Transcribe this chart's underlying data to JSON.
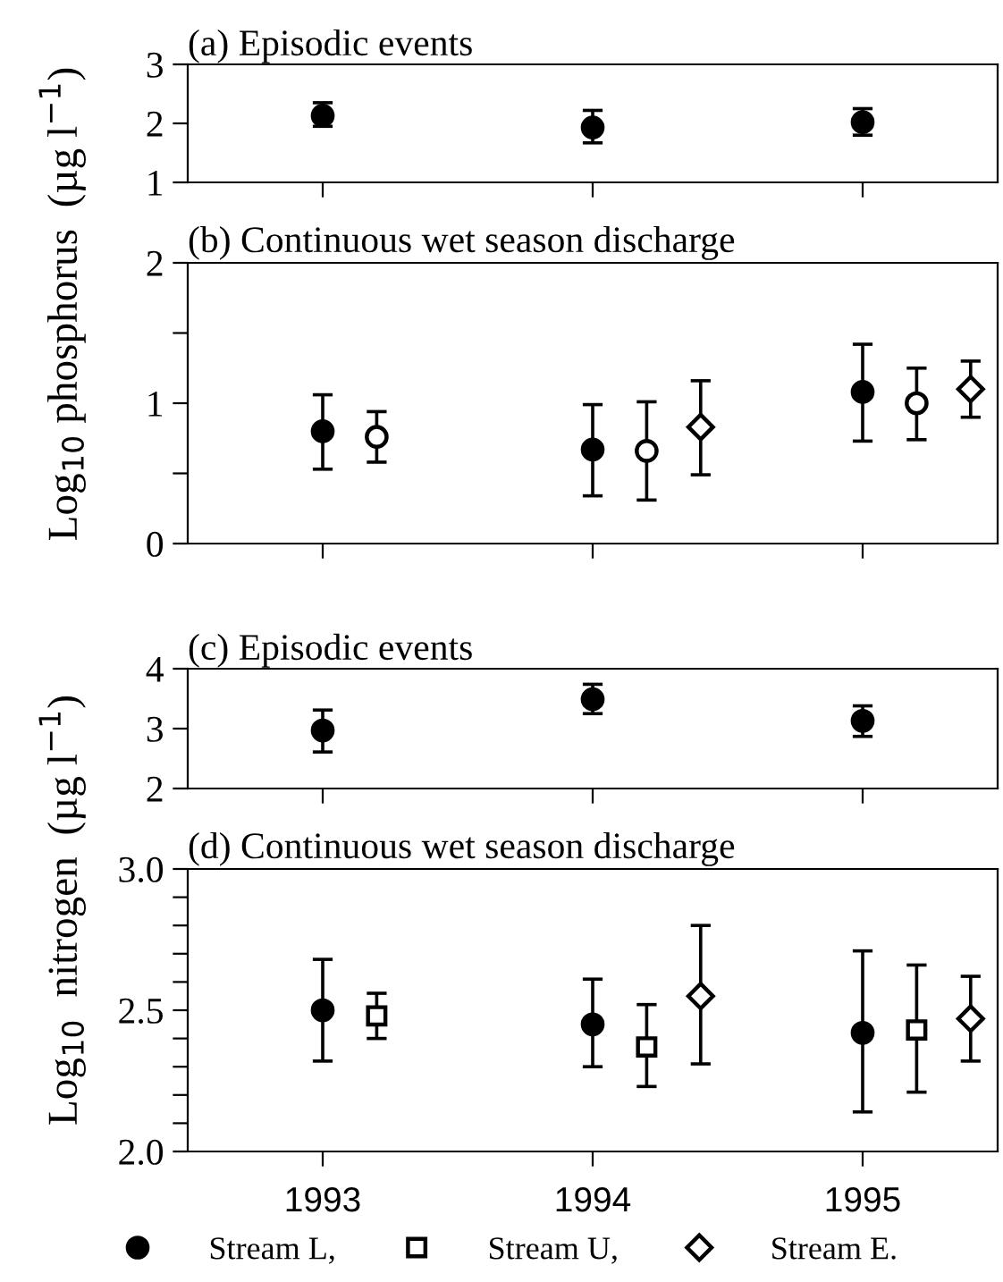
{
  "chart_data": [
    {
      "type": "scatter",
      "title": "(a) Episodic events",
      "xlim": [
        1992.5,
        1995.5
      ],
      "xticks": [
        1993,
        1994,
        1995
      ],
      "ylim": [
        1,
        3
      ],
      "yticks": [
        1,
        2,
        3
      ],
      "tick_labels": "y",
      "grid": false,
      "series": [
        {
          "color": "#000000",
          "marker": "circle",
          "x": [
            1993,
            1994,
            1995
          ],
          "values": [
            2.13,
            1.93,
            2.02
          ],
          "errors": [
            [
              1.95,
              2.35
            ],
            [
              1.67,
              2.22
            ],
            [
              1.8,
              2.25
            ]
          ]
        }
      ]
    },
    {
      "type": "scatter",
      "title": "(b) Continuous wet season discharge",
      "ylabel": "Log$_{10}$ phosphorus  (µg l$^{−1}$)",
      "xlim": [
        1992.5,
        1995.5
      ],
      "xticks": [
        1993,
        1994,
        1995
      ],
      "ylim": [
        0,
        2
      ],
      "yticks": [
        0,
        {
          "value": 0.5,
          "label": null
        },
        1,
        {
          "value": 1.5,
          "label": null
        },
        2
      ],
      "tick_labels": "y",
      "grid": false,
      "series": [
        {
          "color": "#000000",
          "marker": "circle",
          "x": [
            1993,
            1994,
            1995
          ],
          "values": [
            0.8,
            0.67,
            1.08
          ],
          "errors": [
            [
              0.53,
              1.06
            ],
            [
              0.34,
              0.99
            ],
            [
              0.73,
              1.42
            ]
          ]
        },
        {
          "color": "#ffffff",
          "marker": "circle",
          "x": [
            1993.2,
            1994.2,
            1995.2
          ],
          "values": [
            0.76,
            0.66,
            1.0
          ],
          "errors": [
            [
              0.58,
              0.94
            ],
            [
              0.31,
              1.01
            ],
            [
              0.74,
              1.25
            ]
          ]
        },
        {
          "color": "#ffffff",
          "marker": "diamond",
          "x": [
            1994.4,
            1995.4
          ],
          "values": [
            0.83,
            1.1
          ],
          "errors": [
            [
              0.49,
              1.16
            ],
            [
              0.9,
              1.3
            ]
          ]
        }
      ]
    },
    {
      "type": "scatter",
      "title": "(c) Episodic events",
      "xlim": [
        1992.5,
        1995.5
      ],
      "xticks": [
        1993,
        1994,
        1995
      ],
      "ylim": [
        2,
        4
      ],
      "yticks": [
        2,
        3,
        4
      ],
      "tick_labels": "y",
      "grid": false,
      "series": [
        {
          "color": "#000000",
          "marker": "circle",
          "x": [
            1993,
            1994,
            1995
          ],
          "values": [
            2.97,
            3.49,
            3.13
          ],
          "errors": [
            [
              2.61,
              3.31
            ],
            [
              3.25,
              3.74
            ],
            [
              2.87,
              3.38
            ]
          ]
        }
      ]
    },
    {
      "type": "scatter",
      "title": "(d) Continuous wet season discharge",
      "ylabel": "Log$_{10}$  nitrogen  (µg l$^{−1}$)",
      "xlim": [
        1992.5,
        1995.5
      ],
      "xticks": [
        1993,
        1994,
        1995
      ],
      "ylim": [
        2,
        3
      ],
      "yticks": [
        {
          "value": 2,
          "label": "2.0"
        },
        {
          "value": 2.1,
          "label": null
        },
        {
          "value": 2.2,
          "label": null
        },
        {
          "value": 2.3,
          "label": null
        },
        {
          "value": 2.4,
          "label": null
        },
        {
          "value": 2.5,
          "label": "2.5"
        },
        {
          "value": 2.6,
          "label": null
        },
        {
          "value": 2.7,
          "label": null
        },
        {
          "value": 2.8,
          "label": null
        },
        {
          "value": 2.9,
          "label": null
        },
        {
          "value": 3,
          "label": "3.0"
        }
      ],
      "grid": false,
      "legend": "bottom",
      "series": [
        {
          "name": "Stream L,",
          "color": "#000000",
          "marker": "circle",
          "x": [
            1993,
            1994,
            1995
          ],
          "values": [
            2.5,
            2.45,
            2.42
          ],
          "errors": [
            [
              2.32,
              2.68
            ],
            [
              2.3,
              2.61
            ],
            [
              2.14,
              2.71
            ]
          ]
        },
        {
          "name": "Stream U,",
          "color": "#ffffff",
          "marker": "square",
          "x": [
            1993.2,
            1994.2,
            1995.2
          ],
          "values": [
            2.48,
            2.37,
            2.43
          ],
          "errors": [
            [
              2.4,
              2.56
            ],
            [
              2.23,
              2.52
            ],
            [
              2.21,
              2.66
            ]
          ]
        },
        {
          "name": "Stream E.",
          "color": "#ffffff",
          "marker": "diamond",
          "x": [
            1994.4,
            1995.4
          ],
          "values": [
            2.55,
            2.47
          ],
          "errors": [
            [
              2.31,
              2.8
            ],
            [
              2.32,
              2.62
            ]
          ]
        }
      ]
    }
  ]
}
